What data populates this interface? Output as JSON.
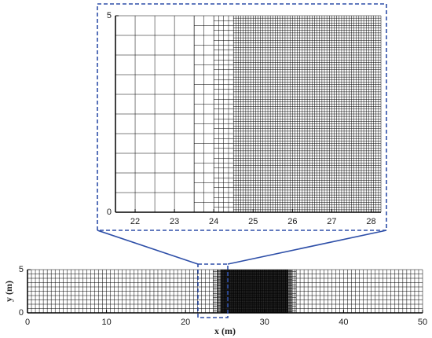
{
  "mesh": [
    {
      "from": 0,
      "to": 23.5,
      "dx": 0.5,
      "dy": 0.5
    },
    {
      "from": 23.5,
      "to": 24,
      "dx": 0.25,
      "dy": 0.25
    },
    {
      "from": 24,
      "to": 24.5,
      "dx": 0.125,
      "dy": 0.125
    },
    {
      "from": 24.5,
      "to": 33,
      "dx": 0.0625,
      "dy": 0.0625
    },
    {
      "from": 33,
      "to": 33.5,
      "dx": 0.125,
      "dy": 0.125
    },
    {
      "from": 33.5,
      "to": 34,
      "dx": 0.25,
      "dy": 0.25
    },
    {
      "from": 34,
      "to": 50,
      "dx": 0.5,
      "dy": 0.5
    }
  ],
  "chart_data": [
    {
      "type": "mesh",
      "xlim": [
        21.5,
        28.25
      ],
      "ylim": [
        0,
        5
      ],
      "xticks": [
        22,
        23,
        24,
        25,
        26,
        27,
        28
      ],
      "yticks": [
        0,
        5
      ]
    },
    {
      "type": "mesh",
      "xlabel": "x (m)",
      "ylabel": "y (m)",
      "xlim": [
        0,
        50
      ],
      "ylim": [
        0,
        5
      ],
      "xticks": [
        0,
        10,
        20,
        30,
        40,
        50
      ],
      "yticks": [
        0,
        5
      ]
    }
  ]
}
